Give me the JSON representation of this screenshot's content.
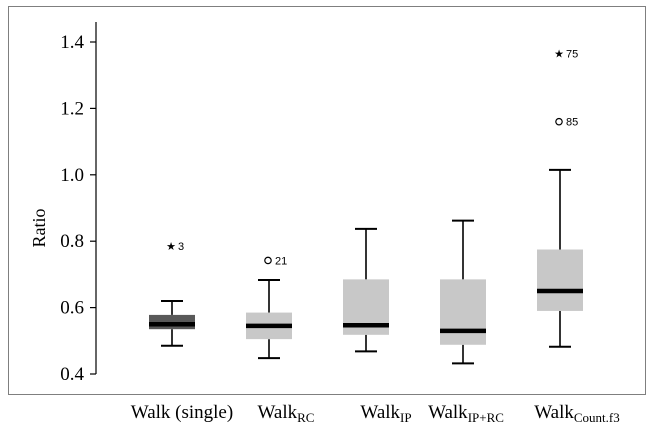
{
  "chart_data": {
    "type": "boxplot",
    "ylabel": "Ratio",
    "ylim": [
      0.38,
      1.45
    ],
    "yticks": [
      "0.4",
      "0.6",
      "0.8",
      "1.0",
      "1.2",
      "1.4"
    ],
    "categories": [
      {
        "main": "Walk (single)",
        "sub": ""
      },
      {
        "main": "Walk",
        "sub": "RC"
      },
      {
        "main": "Walk",
        "sub": "IP"
      },
      {
        "main": "Walk",
        "sub": "IP+RC"
      },
      {
        "main": "Walk",
        "sub": "Count.f3"
      }
    ],
    "boxes": [
      {
        "min": 0.485,
        "q1": 0.535,
        "median": 0.55,
        "q3": 0.578,
        "max": 0.62,
        "color": "#595959",
        "outliers": [
          {
            "value": 0.785,
            "symbol": "star",
            "label": "3"
          }
        ]
      },
      {
        "min": 0.448,
        "q1": 0.505,
        "median": 0.545,
        "q3": 0.585,
        "max": 0.683,
        "color": "#c8c8c8",
        "outliers": [
          {
            "value": 0.742,
            "symbol": "circle",
            "label": "21"
          }
        ]
      },
      {
        "min": 0.468,
        "q1": 0.518,
        "median": 0.547,
        "q3": 0.685,
        "max": 0.837,
        "color": "#c8c8c8",
        "outliers": []
      },
      {
        "min": 0.432,
        "q1": 0.488,
        "median": 0.53,
        "q3": 0.685,
        "max": 0.862,
        "color": "#c8c8c8",
        "outliers": []
      },
      {
        "min": 0.482,
        "q1": 0.59,
        "median": 0.65,
        "q3": 0.775,
        "max": 1.015,
        "color": "#c8c8c8",
        "outliers": [
          {
            "value": 1.16,
            "symbol": "circle",
            "label": "85"
          },
          {
            "value": 1.365,
            "symbol": "star",
            "label": "75"
          }
        ]
      }
    ]
  }
}
